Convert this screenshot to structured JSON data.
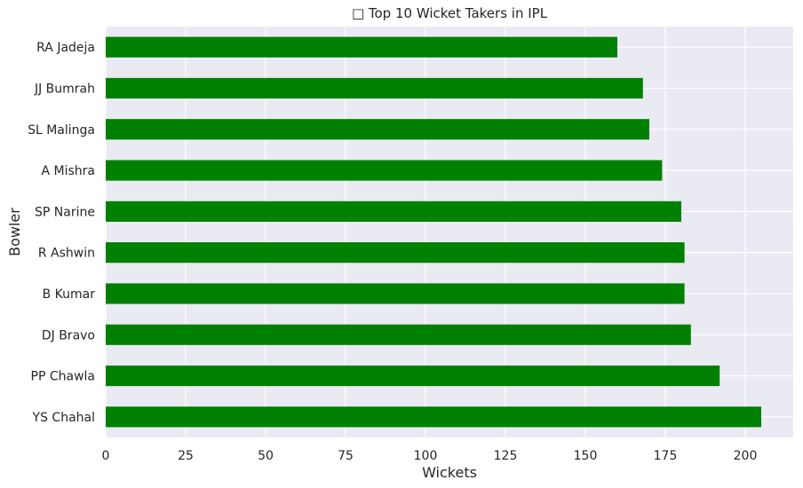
{
  "chart_data": {
    "type": "bar",
    "orientation": "horizontal",
    "title": "□ Top 10 Wicket Takers in IPL",
    "xlabel": "Wickets",
    "ylabel": "Bowler",
    "categories": [
      "RA Jadeja",
      "JJ Bumrah",
      "SL Malinga",
      "A Mishra",
      "SP Narine",
      "R Ashwin",
      "B Kumar",
      "DJ Bravo",
      "PP Chawla",
      "YS Chahal"
    ],
    "values": [
      160,
      168,
      170,
      174,
      180,
      181,
      181,
      183,
      192,
      205
    ],
    "xlim": [
      0,
      215
    ],
    "xticks": [
      "0",
      "25",
      "50",
      "75",
      "100",
      "125",
      "150",
      "175",
      "200"
    ],
    "grid": true,
    "bar_color": "#008000",
    "background_color": "#eaeaf2",
    "grid_color": "#ffffff"
  }
}
